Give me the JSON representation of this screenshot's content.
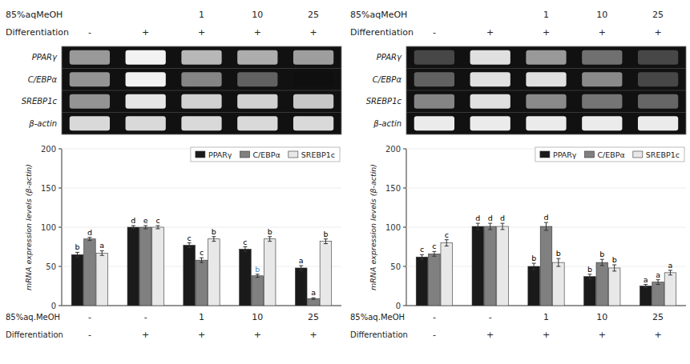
{
  "chart_data": [
    {
      "type": "heatmap",
      "category_rows": [
        {
          "name": "85%aqMeOH",
          "labels": [
            null,
            null,
            "1",
            "10",
            "25"
          ]
        },
        {
          "name": "Differentiation",
          "labels": [
            "-",
            "+",
            "+",
            "+",
            "+"
          ]
        }
      ],
      "rows": [
        "PPARγ",
        "C/EBPα",
        "SREBP1c",
        "β-actin"
      ],
      "cells": [
        [
          0.6,
          0.95,
          0.72,
          0.68,
          0.62
        ],
        [
          0.58,
          0.95,
          0.52,
          0.38,
          0.06
        ],
        [
          0.58,
          0.9,
          0.82,
          0.82,
          0.78
        ],
        [
          0.85,
          0.85,
          0.85,
          0.85,
          0.85
        ]
      ]
    },
    {
      "type": "bar",
      "category_rows": [
        {
          "name": "85%aq.MeOH",
          "labels": [
            "-",
            "-",
            "1",
            "10",
            "25"
          ]
        },
        {
          "name": "Differentiation",
          "labels": [
            "-",
            "+",
            "+",
            "+",
            "+"
          ]
        }
      ],
      "ylabel": "mRNA expression levels (β-actin)",
      "ylim": [
        0,
        200
      ],
      "yticks": [
        0,
        50,
        100,
        150,
        200
      ],
      "legend": "upper right",
      "series": [
        {
          "name": "PPARγ",
          "color": "#1a1a1a",
          "values": [
            65,
            100,
            77,
            72,
            48
          ],
          "errors": [
            3,
            2,
            3,
            3,
            3
          ],
          "annotations": [
            "b",
            "d",
            "c",
            "c",
            "a"
          ],
          "annotation_colors": [
            "#000000",
            "#000000",
            "#000000",
            "#000000",
            "#000000"
          ]
        },
        {
          "name": "C/EBPα",
          "color": "#808080",
          "values": [
            85,
            100,
            58,
            38,
            9
          ],
          "errors": [
            2,
            2,
            3,
            2,
            1
          ],
          "annotations": [
            "d",
            "e",
            "c",
            "b",
            "a"
          ],
          "annotation_colors": [
            "#000000",
            "#000000",
            "#000000",
            "#4a8fcc",
            "#000000"
          ]
        },
        {
          "name": "SREBP1c",
          "color": "#e8e8e8",
          "values": [
            67,
            100,
            85,
            85,
            82
          ],
          "errors": [
            3,
            2,
            3,
            3,
            3
          ],
          "annotations": [
            "a",
            "c",
            "b",
            "b",
            "b"
          ],
          "annotation_colors": [
            "#000000",
            "#000000",
            "#000000",
            "#000000",
            "#000000"
          ]
        }
      ]
    },
    {
      "type": "heatmap",
      "category_rows": [
        {
          "name": "85%aqMeOH",
          "labels": [
            null,
            null,
            "1",
            "10",
            "25"
          ]
        },
        {
          "name": "Differentiation",
          "labels": [
            "-",
            "+",
            "+",
            "+",
            "+"
          ]
        }
      ],
      "rows": [
        "PPARγ",
        "C/EBPα",
        "SREBP1c",
        "β-actin"
      ],
      "cells": [
        [
          0.28,
          0.88,
          0.6,
          0.44,
          0.28
        ],
        [
          0.38,
          0.88,
          0.88,
          0.54,
          0.28
        ],
        [
          0.52,
          0.88,
          0.54,
          0.46,
          0.4
        ],
        [
          0.92,
          0.92,
          0.92,
          0.92,
          0.92
        ]
      ]
    },
    {
      "type": "bar",
      "category_rows": [
        {
          "name": "85%aq.MeOH",
          "labels": [
            "-",
            "-",
            "1",
            "10",
            "25"
          ]
        },
        {
          "name": "Differentiation",
          "labels": [
            "-",
            "+",
            "+",
            "+",
            "+"
          ]
        }
      ],
      "ylabel": "mRNA expression levels (β-actin)",
      "ylim": [
        0,
        200
      ],
      "yticks": [
        0,
        50,
        100,
        150,
        200
      ],
      "legend": "upper right",
      "series": [
        {
          "name": "PPARγ",
          "color": "#1a1a1a",
          "values": [
            62,
            101,
            50,
            37,
            25
          ],
          "errors": [
            3,
            4,
            4,
            3,
            2
          ],
          "annotations": [
            "c",
            "d",
            "b",
            "b",
            "a"
          ],
          "annotation_colors": [
            "#000000",
            "#000000",
            "#000000",
            "#000000",
            "#000000"
          ]
        },
        {
          "name": "C/EBPα",
          "color": "#808080",
          "values": [
            66,
            101,
            101,
            55,
            30
          ],
          "errors": [
            3,
            4,
            5,
            4,
            3
          ],
          "annotations": [
            "c",
            "d",
            "d",
            "b",
            "a"
          ],
          "annotation_colors": [
            "#000000",
            "#000000",
            "#000000",
            "#000000",
            "#000000"
          ]
        },
        {
          "name": "SREBP1c",
          "color": "#e8e8e8",
          "values": [
            80,
            101,
            55,
            48,
            42
          ],
          "errors": [
            4,
            4,
            5,
            4,
            3
          ],
          "annotations": [
            "c",
            "d",
            "b",
            "b",
            "a"
          ],
          "annotation_colors": [
            "#000000",
            "#000000",
            "#000000",
            "#000000",
            "#000000"
          ]
        }
      ]
    }
  ]
}
